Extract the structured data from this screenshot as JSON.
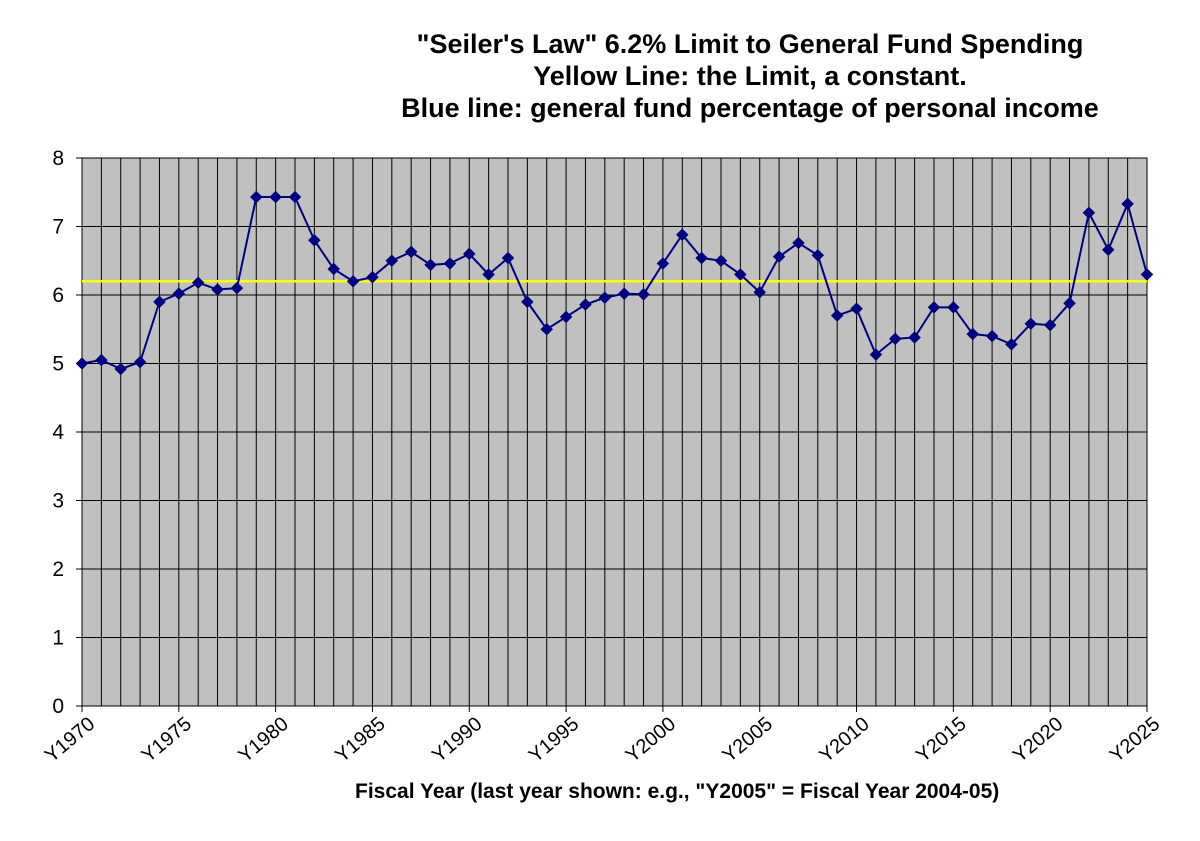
{
  "chart_data": {
    "type": "line",
    "title_lines": [
      "\"Seiler's Law\" 6.2% Limit to General Fund Spending",
      "Yellow Line: the Limit, a constant.",
      "Blue line: general fund percentage of personal income"
    ],
    "xlabel": "Fiscal Year (last year shown: e.g., \"Y2005\" = Fiscal Year 2004-05)",
    "ylabel": "",
    "ylim": [
      0,
      8
    ],
    "yticks": [
      "0",
      "1",
      "2",
      "3",
      "4",
      "5",
      "6",
      "7",
      "8"
    ],
    "x": [
      1970,
      1971,
      1972,
      1973,
      1974,
      1975,
      1976,
      1977,
      1978,
      1979,
      1980,
      1981,
      1982,
      1983,
      1984,
      1985,
      1986,
      1987,
      1988,
      1989,
      1990,
      1991,
      1992,
      1993,
      1994,
      1995,
      1996,
      1997,
      1998,
      1999,
      2000,
      2001,
      2002,
      2003,
      2004,
      2005,
      2006,
      2007,
      2008,
      2009,
      2010,
      2011,
      2012,
      2013,
      2014,
      2015,
      2016,
      2017,
      2018,
      2019,
      2020,
      2021,
      2022,
      2023,
      2024,
      2025
    ],
    "xtick_labels": [
      {
        "year": 1970,
        "label": "Y1970"
      },
      {
        "year": 1975,
        "label": "Y1975"
      },
      {
        "year": 1980,
        "label": "Y1980"
      },
      {
        "year": 1985,
        "label": "Y1985"
      },
      {
        "year": 1990,
        "label": "Y1990"
      },
      {
        "year": 1995,
        "label": "Y1995"
      },
      {
        "year": 2000,
        "label": "Y2000"
      },
      {
        "year": 2005,
        "label": "Y2005"
      },
      {
        "year": 2010,
        "label": "Y2010"
      },
      {
        "year": 2015,
        "label": "Y2015"
      },
      {
        "year": 2020,
        "label": "Y2020"
      },
      {
        "year": 2025,
        "label": "Y2025"
      }
    ],
    "series": [
      {
        "name": "General fund percentage of personal income",
        "color": "#000080",
        "marker": "diamond",
        "values": [
          5.0,
          5.05,
          4.92,
          5.02,
          5.9,
          6.02,
          6.18,
          6.08,
          6.1,
          7.43,
          7.43,
          7.43,
          6.8,
          6.38,
          6.2,
          6.26,
          6.5,
          6.63,
          6.44,
          6.46,
          6.6,
          6.3,
          6.54,
          5.9,
          5.5,
          5.68,
          5.86,
          5.96,
          6.02,
          6.01,
          6.46,
          6.88,
          6.54,
          6.5,
          6.3,
          6.04,
          6.56,
          6.76,
          6.58,
          5.7,
          5.8,
          5.13,
          5.36,
          5.38,
          5.82,
          5.82,
          5.43,
          5.4,
          5.28,
          5.58,
          5.56,
          5.88,
          7.2,
          6.66,
          7.33,
          6.3
        ]
      },
      {
        "name": "The Limit, a constant",
        "color": "#ffff00",
        "constant": 6.2
      }
    ],
    "plot_background": "#c0c0c0",
    "grid": true
  }
}
